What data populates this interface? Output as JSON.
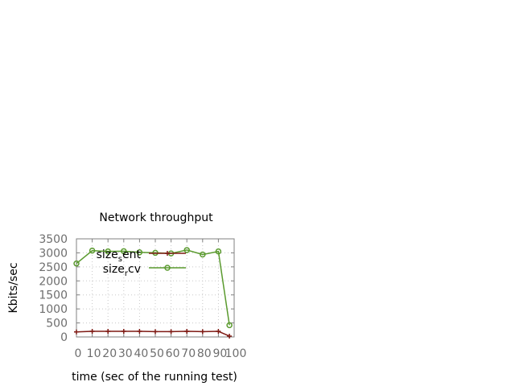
{
  "chart_data": {
    "type": "line",
    "title": "Network throughput",
    "xlabel": "time (sec of the running test)",
    "ylabel": "Kbits/sec",
    "xlim": [
      0,
      100
    ],
    "ylim": [
      0,
      3500
    ],
    "xticks": [
      0,
      10,
      20,
      30,
      40,
      50,
      60,
      70,
      80,
      90,
      100
    ],
    "yticks": [
      0,
      500,
      1000,
      1500,
      2000,
      2500,
      3000,
      3500
    ],
    "xtick_labels": [
      "0",
      "10",
      "20",
      "30",
      "40",
      "50",
      "60",
      "70",
      "80",
      "90",
      "100"
    ],
    "ytick_labels": [
      "0",
      "500",
      "1000",
      "1500",
      "2000",
      "2500",
      "3000",
      "3500"
    ],
    "grid": true,
    "legend_position": "top-right",
    "series": [
      {
        "name": "size_sent",
        "name_main": "size",
        "name_sub": "s",
        "name_tail": "ent",
        "color": "#7f1a14",
        "marker": "plus",
        "x": [
          0,
          10,
          20,
          30,
          40,
          50,
          60,
          70,
          80,
          90,
          97
        ],
        "y": [
          180,
          200,
          200,
          200,
          200,
          190,
          190,
          200,
          190,
          200,
          30
        ]
      },
      {
        "name": "size_recv",
        "name_main": "size",
        "name_sub": "r",
        "name_tail": "cv",
        "color": "#5a9a2e",
        "marker": "circle",
        "x": [
          0,
          10,
          20,
          30,
          40,
          50,
          60,
          70,
          80,
          90,
          97
        ],
        "y": [
          2620,
          3080,
          3050,
          3060,
          3020,
          3000,
          2980,
          3100,
          2940,
          3050,
          420
        ]
      }
    ]
  }
}
